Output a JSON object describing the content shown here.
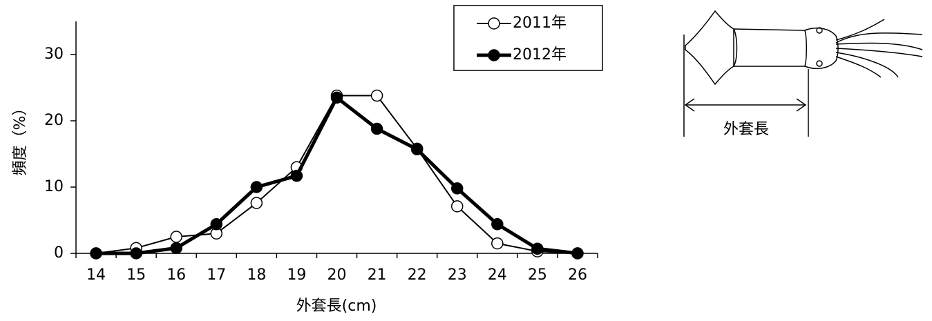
{
  "chart_data": {
    "type": "line",
    "x_label": "外套長(cm)",
    "y_label": "頻度（%）",
    "categories": [
      "14",
      "15",
      "16",
      "17",
      "18",
      "19",
      "20",
      "21",
      "22",
      "23",
      "24",
      "25",
      "26"
    ],
    "series": [
      {
        "name": "2011年",
        "color": "#000000",
        "marker": "open",
        "values": [
          0,
          0.8,
          2.5,
          3.0,
          7.6,
          13.0,
          23.8,
          23.8,
          15.8,
          7.1,
          1.5,
          0.3,
          0
        ]
      },
      {
        "name": "2012年",
        "color": "#000000",
        "marker": "filled",
        "values": [
          0,
          0,
          0.8,
          4.4,
          10.0,
          11.7,
          23.5,
          18.8,
          15.7,
          9.8,
          4.4,
          0.7,
          0
        ]
      }
    ],
    "ylim": [
      0,
      35
    ],
    "yticks": [
      0,
      10,
      20,
      30
    ],
    "legend": "top-right"
  },
  "diagram": {
    "label": "外套長"
  }
}
